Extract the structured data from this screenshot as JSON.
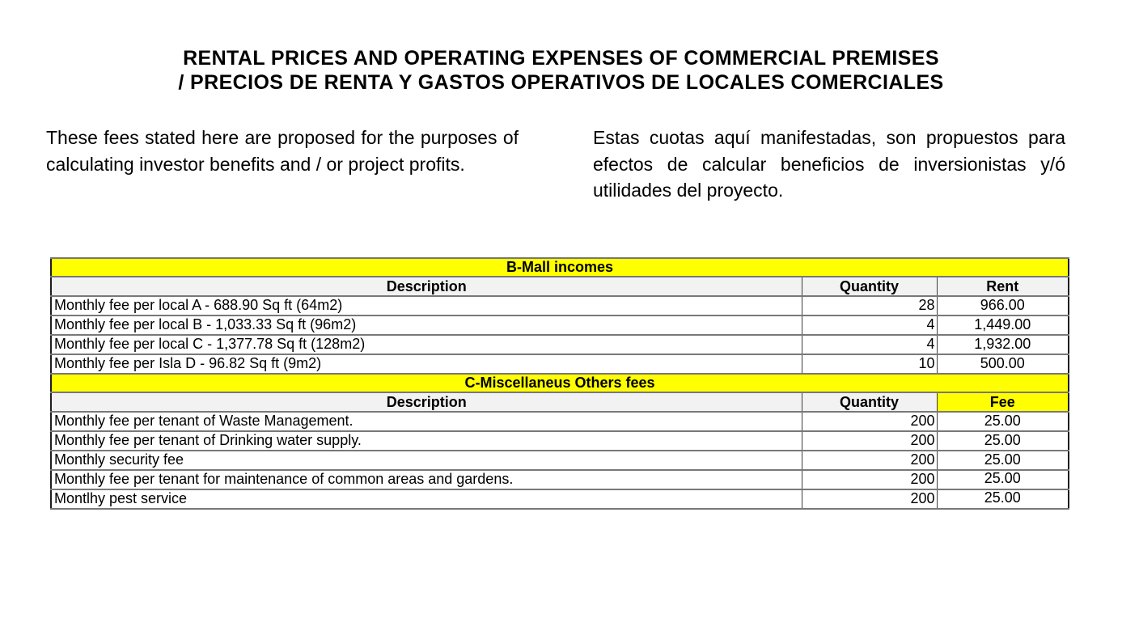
{
  "page": {
    "title_line1": "RENTAL PRICES AND OPERATING EXPENSES OF COMMERCIAL PREMISES",
    "title_line2": "/ PRECIOS DE RENTA Y GASTOS OPERATIVOS DE LOCALES COMERCIALES",
    "intro_english": "These fees stated here are proposed for the purposes of calculating investor benefits and / or project profits.",
    "intro_spanish": "Estas cuotas aquí manifestadas, son propuestos para efectos de calcular beneficios de inversionistas y/ó utilidades del proyecto."
  },
  "colors": {
    "highlight_yellow": "#ffff00",
    "header_gray": "#f2f2f2",
    "border_dark": "#1e1e1e",
    "text": "#000000"
  },
  "table": {
    "sections": [
      {
        "header": "B-Mall incomes",
        "columns": {
          "description": "Description",
          "quantity": "Quantity",
          "value": "Rent"
        },
        "rows": [
          {
            "description": "Monthly fee per local A - 688.90 Sq ft (64m2)",
            "quantity": "28",
            "value": "966.00"
          },
          {
            "description": "Monthly fee per local B - 1,033.33 Sq ft (96m2)",
            "quantity": "4",
            "value": "1,449.00"
          },
          {
            "description": "Monthly fee per local C - 1,377.78 Sq ft (128m2)",
            "quantity": "4",
            "value": "1,932.00"
          },
          {
            "description": "Monthly fee per Isla D - 96.82 Sq ft (9m2)",
            "quantity": "10",
            "value": "500.00"
          }
        ]
      },
      {
        "header": "C-Miscellaneus Others fees",
        "columns": {
          "description": "Description",
          "quantity": "Quantity",
          "value": "Fee"
        },
        "rows": [
          {
            "description": "Monthly fee per tenant of Waste Management.",
            "quantity": "200",
            "value": "25.00"
          },
          {
            "description": "Monthly fee per tenant of Drinking water supply.",
            "quantity": "200",
            "value": "25.00"
          },
          {
            "description": "Monthly security fee",
            "quantity": "200",
            "value": "25.00"
          },
          {
            "description": "Monthly fee per tenant for maintenance of common areas and gardens.",
            "quantity": "200",
            "value": "25.00"
          },
          {
            "description": "Montlhy pest service",
            "quantity": "200",
            "value": "25.00"
          }
        ]
      }
    ]
  }
}
